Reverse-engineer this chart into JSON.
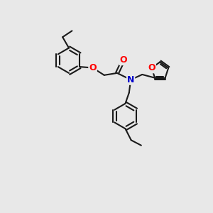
{
  "bg_color": "#e8e8e8",
  "bond_color": "#1a1a1a",
  "bond_width": 1.5,
  "atom_colors": {
    "O": "#ff0000",
    "N": "#0000cc"
  },
  "font_size": 9,
  "fig_size": [
    3.0,
    3.0
  ],
  "dpi": 100,
  "xlim": [
    0,
    10
  ],
  "ylim": [
    0,
    10
  ]
}
